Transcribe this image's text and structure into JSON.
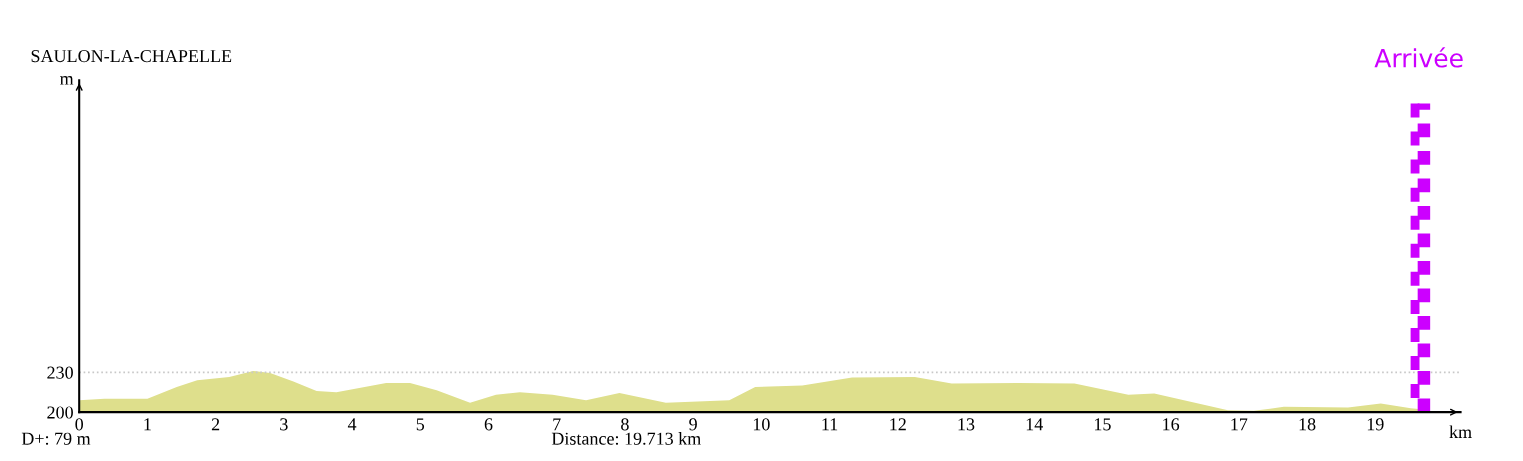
{
  "chart_data": {
    "type": "area",
    "title": "SAULON-LA-CHAPELLE",
    "xlabel": "km",
    "ylabel": "m",
    "x": [
      0,
      0.37,
      1.0,
      1.43,
      1.73,
      2.2,
      2.55,
      2.8,
      3.14,
      3.48,
      3.77,
      4.5,
      4.85,
      5.24,
      5.73,
      6.11,
      6.46,
      6.94,
      7.43,
      7.92,
      8.6,
      9.53,
      9.91,
      10.6,
      11.33,
      12.25,
      12.79,
      13.77,
      14.59,
      15.38,
      15.76,
      16.84,
      17.22,
      17.66,
      18.6,
      19.08,
      19.52,
      19.713
    ],
    "series": [
      {
        "color": "#dedf8c",
        "values": [
          209,
          210,
          210,
          219,
          224,
          226.5,
          231,
          229.5,
          223,
          216,
          215,
          222,
          222,
          216.5,
          207,
          213,
          215,
          213,
          209,
          214.5,
          207,
          209,
          219,
          220,
          226,
          226.5,
          221.5,
          222,
          221.5,
          213,
          214,
          201.5,
          201,
          204,
          203.5,
          206.5,
          203,
          202
        ]
      }
    ],
    "xlim": [
      0,
      20.25
    ],
    "ylim": [
      200,
      450
    ],
    "xticks": [
      0,
      1,
      2,
      3,
      4,
      5,
      6,
      7,
      8,
      9,
      10,
      11,
      12,
      13,
      14,
      15,
      16,
      17,
      18,
      19
    ],
    "yticks": [
      200,
      230
    ],
    "grid": false,
    "legend": false,
    "ref_lines": [
      {
        "axis": "y",
        "value": 230,
        "label": null,
        "color": "#c8c8c8",
        "line_style": "dotted"
      },
      {
        "axis": "x",
        "value": 19.713,
        "label": "Arrivée",
        "color": "#cc00ff",
        "line_style": "checkered"
      }
    ],
    "annotations": [
      "D+: 79 m",
      "Distance: 19.713 km"
    ]
  }
}
